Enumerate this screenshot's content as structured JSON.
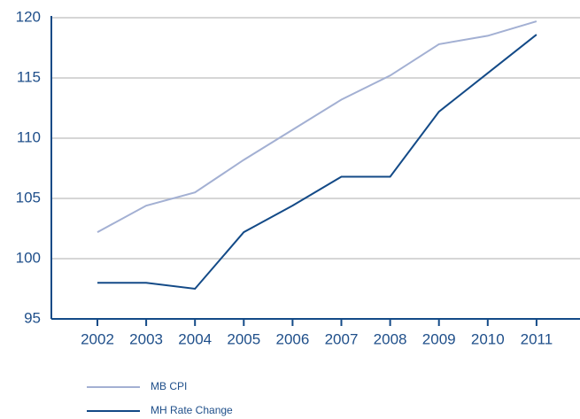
{
  "chart_data": {
    "type": "line",
    "categories": [
      "2002",
      "2003",
      "2004",
      "2005",
      "2006",
      "2007",
      "2008",
      "2009",
      "2010",
      "2011"
    ],
    "series": [
      {
        "name": "MB CPI",
        "color": "#a3b0d3",
        "values": [
          102.2,
          104.4,
          105.5,
          108.2,
          110.7,
          113.2,
          115.2,
          117.8,
          118.5,
          119.7
        ]
      },
      {
        "name": "MH Rate Change",
        "color": "#134a87",
        "values": [
          98.0,
          98.0,
          97.5,
          102.2,
          104.4,
          106.8,
          106.8,
          112.2,
          115.4,
          118.6
        ]
      }
    ],
    "ylim": [
      95,
      120
    ],
    "yticks": [
      95,
      100,
      105,
      110,
      115,
      120
    ],
    "grid": true,
    "legend": "bottom-left"
  }
}
